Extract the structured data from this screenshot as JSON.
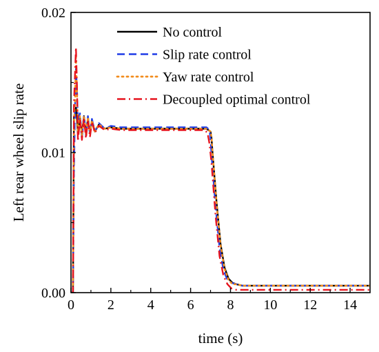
{
  "chart_data": {
    "type": "line",
    "title": "",
    "xlabel": "time (s)",
    "ylabel": "Left rear wheel slip rate",
    "xlim": [
      0,
      15
    ],
    "ylim": [
      0,
      0.02
    ],
    "xticks": [
      0,
      2,
      4,
      6,
      8,
      10,
      12,
      14
    ],
    "yticks": [
      0.0,
      0.01,
      0.02
    ],
    "xtick_labels": [
      "0",
      "2",
      "4",
      "6",
      "8",
      "10",
      "12",
      "14"
    ],
    "ytick_labels": [
      "0.00",
      "0.01",
      "0.02"
    ],
    "grid": false,
    "legend_position": "top-right",
    "series": [
      {
        "name": "No control",
        "color": "#000000",
        "style": "solid",
        "x": [
          0.0,
          0.1,
          0.15,
          0.2,
          0.25,
          0.3,
          0.35,
          0.45,
          0.55,
          0.65,
          0.75,
          0.85,
          0.95,
          1.05,
          1.2,
          1.4,
          1.7,
          2.0,
          2.5,
          3.0,
          4.0,
          5.0,
          6.0,
          6.8,
          7.0,
          7.05,
          7.1,
          7.3,
          7.5,
          7.7,
          7.9,
          8.1,
          8.3,
          8.6,
          9.0,
          10.0,
          12.0,
          14.0,
          15.0
        ],
        "y": [
          0.0,
          0.0,
          0.0125,
          0.0128,
          0.0132,
          0.0124,
          0.0113,
          0.0125,
          0.0113,
          0.0126,
          0.0114,
          0.0124,
          0.0114,
          0.0123,
          0.0115,
          0.012,
          0.0117,
          0.0118,
          0.0117,
          0.0117,
          0.0117,
          0.0117,
          0.0117,
          0.0117,
          0.0115,
          0.011,
          0.01,
          0.0065,
          0.0035,
          0.0018,
          0.001,
          0.0007,
          0.0006,
          0.0005,
          0.0005,
          0.0005,
          0.0005,
          0.0005,
          0.0005
        ]
      },
      {
        "name": "Slip rate control",
        "color": "#1f3ce6",
        "style": "dashed",
        "x": [
          0.0,
          0.1,
          0.15,
          0.2,
          0.25,
          0.3,
          0.35,
          0.45,
          0.55,
          0.65,
          0.75,
          0.85,
          0.95,
          1.05,
          1.2,
          1.4,
          1.7,
          2.0,
          2.5,
          3.0,
          4.0,
          5.0,
          6.0,
          6.8,
          6.95,
          7.0,
          7.05,
          7.25,
          7.45,
          7.65,
          7.85,
          8.05,
          8.3,
          8.6,
          9.0,
          10.0,
          12.0,
          14.0,
          15.0
        ],
        "y": [
          0.0,
          0.0,
          0.0085,
          0.013,
          0.016,
          0.0145,
          0.0122,
          0.0128,
          0.011,
          0.0127,
          0.0112,
          0.0126,
          0.0113,
          0.0124,
          0.0115,
          0.0121,
          0.0117,
          0.0119,
          0.0118,
          0.0118,
          0.0118,
          0.0118,
          0.0118,
          0.0118,
          0.0116,
          0.011,
          0.0098,
          0.0062,
          0.0032,
          0.0016,
          0.0009,
          0.0007,
          0.0006,
          0.0005,
          0.0005,
          0.0005,
          0.0005,
          0.0005,
          0.0005
        ]
      },
      {
        "name": "Yaw  rate control",
        "color": "#f28c1c",
        "style": "dotted",
        "x": [
          0.0,
          0.1,
          0.15,
          0.2,
          0.25,
          0.3,
          0.35,
          0.45,
          0.55,
          0.65,
          0.75,
          0.85,
          0.95,
          1.05,
          1.2,
          1.4,
          1.7,
          2.0,
          2.5,
          3.0,
          4.0,
          5.0,
          6.0,
          6.8,
          7.0,
          7.05,
          7.1,
          7.3,
          7.5,
          7.7,
          7.9,
          8.1,
          8.3,
          8.6,
          9.0,
          10.0,
          12.0,
          14.0,
          15.0
        ],
        "y": [
          0.0,
          0.0,
          0.012,
          0.0135,
          0.0168,
          0.0142,
          0.0114,
          0.0126,
          0.0112,
          0.0126,
          0.0113,
          0.0125,
          0.0114,
          0.0123,
          0.0115,
          0.012,
          0.0117,
          0.0118,
          0.0117,
          0.0117,
          0.0117,
          0.0117,
          0.0117,
          0.0117,
          0.0115,
          0.011,
          0.01,
          0.0064,
          0.0034,
          0.0017,
          0.0009,
          0.0006,
          0.0006,
          0.0005,
          0.0005,
          0.0005,
          0.0005,
          0.0005,
          0.0005
        ]
      },
      {
        "name": "Decoupled optimal control",
        "color": "#e6141e",
        "style": "dashdot",
        "x": [
          0.0,
          0.1,
          0.15,
          0.2,
          0.25,
          0.3,
          0.35,
          0.45,
          0.55,
          0.65,
          0.75,
          0.85,
          0.95,
          1.05,
          1.2,
          1.4,
          1.7,
          2.0,
          2.5,
          3.0,
          4.0,
          5.0,
          6.0,
          6.7,
          6.85,
          6.95,
          7.05,
          7.25,
          7.45,
          7.65,
          7.85,
          8.05,
          8.3,
          8.6,
          9.0,
          10.0,
          12.0,
          14.0,
          15.0
        ],
        "y": [
          0.0,
          0.0,
          0.0135,
          0.0155,
          0.0175,
          0.0148,
          0.0108,
          0.0124,
          0.0109,
          0.0125,
          0.011,
          0.0123,
          0.0111,
          0.0122,
          0.0114,
          0.0119,
          0.0116,
          0.0117,
          0.0116,
          0.0116,
          0.0116,
          0.0116,
          0.0116,
          0.0116,
          0.0114,
          0.0106,
          0.0092,
          0.0055,
          0.0026,
          0.0012,
          0.0006,
          0.0003,
          0.0002,
          0.0002,
          0.0002,
          0.0002,
          0.0002,
          0.0002,
          0.0002
        ]
      }
    ]
  }
}
